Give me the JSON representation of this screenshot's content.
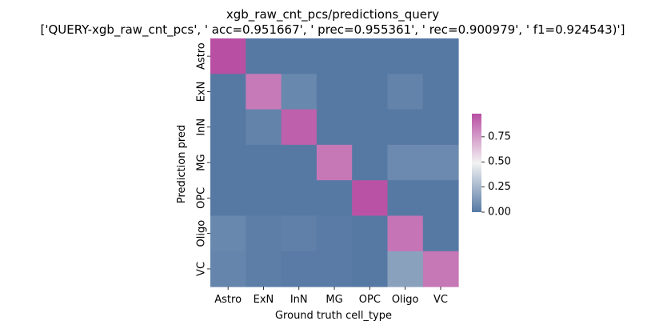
{
  "chart_data": {
    "type": "heatmap",
    "title": "xgb_raw_cnt_pcs/predictions_query",
    "subtitle": "['QUERY-xgb_raw_cnt_pcs', ' acc=0.951667', '  prec=0.955361', ' rec=0.900979', ' f1=0.924543)']",
    "xlabel": "Ground truth cell_type",
    "ylabel": "Prediction pred",
    "x_categories": [
      "Astro",
      "ExN",
      "InN",
      "MG",
      "OPC",
      "Oligo",
      "VC"
    ],
    "y_categories": [
      "Astro",
      "ExN",
      "InN",
      "MG",
      "OPC",
      "Oligo",
      "VC"
    ],
    "values": [
      [
        0.98,
        0.0,
        0.0,
        0.0,
        0.0,
        0.0,
        0.0
      ],
      [
        0.0,
        0.85,
        0.06,
        0.0,
        0.0,
        0.04,
        0.0
      ],
      [
        0.0,
        0.04,
        0.93,
        0.0,
        0.0,
        0.0,
        0.0
      ],
      [
        0.0,
        0.0,
        0.0,
        0.86,
        0.0,
        0.07,
        0.07
      ],
      [
        0.0,
        0.0,
        0.0,
        0.0,
        0.97,
        0.0,
        0.0
      ],
      [
        0.06,
        0.02,
        0.03,
        0.01,
        0.0,
        0.87,
        0.0
      ],
      [
        0.05,
        0.02,
        0.01,
        0.01,
        0.0,
        0.16,
        0.86
      ]
    ],
    "colorbar": {
      "min": 0.0,
      "max": 0.98,
      "ticks": [
        "0.00",
        "0.25",
        "0.50",
        "0.75"
      ]
    },
    "colors": {
      "low": "#5679a4",
      "mid": "#f2f2f2",
      "high": "#b84fa3"
    }
  }
}
